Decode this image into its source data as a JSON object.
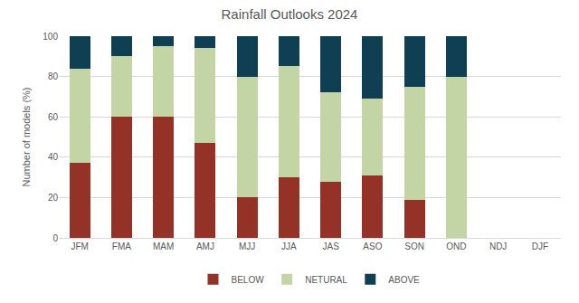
{
  "chart_data": {
    "type": "bar",
    "title": "Rainfall Outlooks 2024",
    "y_label": "Number of models (%)",
    "categories": [
      "JFM",
      "FMA",
      "MAM",
      "AMJ",
      "MJJ",
      "JJA",
      "JAS",
      "ASO",
      "SON",
      "OND",
      "NDJ",
      "DJF"
    ],
    "series": [
      {
        "name": "BELOW",
        "color": "#953227",
        "values": [
          37,
          60,
          60,
          47,
          20,
          30,
          28,
          31,
          19,
          0,
          null,
          null
        ]
      },
      {
        "name": "NETURAL",
        "color": "#c3d5a4",
        "values": [
          47,
          30,
          35,
          47,
          60,
          55,
          44,
          38,
          56,
          80,
          null,
          null
        ]
      },
      {
        "name": "ABOVE",
        "color": "#0e3f52",
        "values": [
          16,
          10,
          5,
          6,
          20,
          15,
          28,
          31,
          25,
          20,
          null,
          null
        ]
      }
    ],
    "stacked": true,
    "ylim": [
      0,
      100
    ],
    "yticks": [
      0,
      20,
      40,
      60,
      80,
      100
    ],
    "grid": true,
    "legend": "bottom"
  }
}
